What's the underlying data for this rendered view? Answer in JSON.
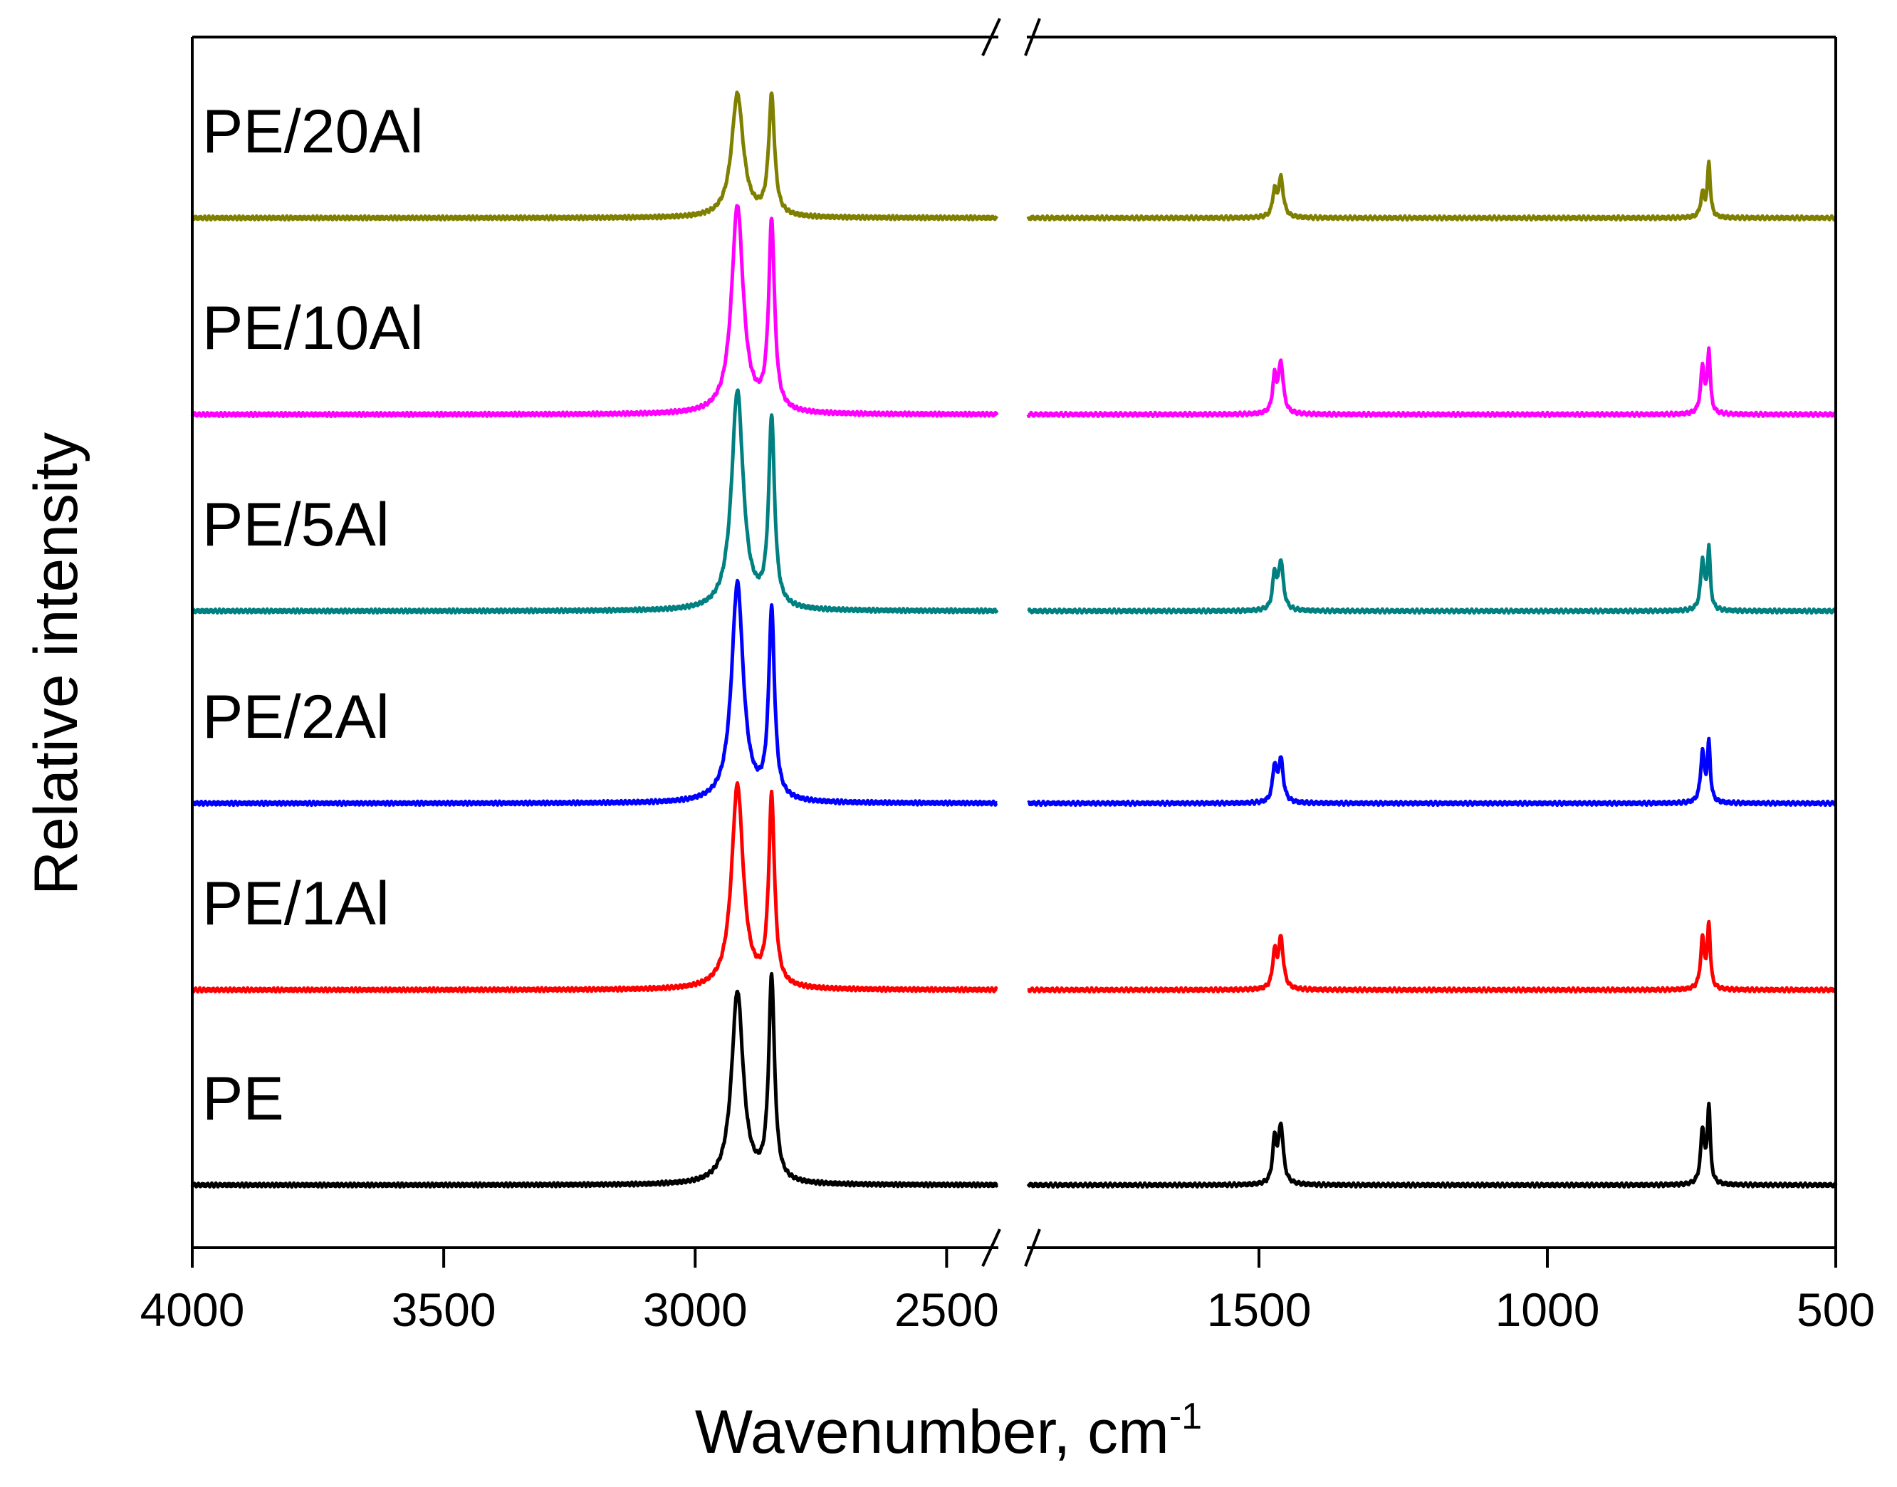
{
  "chart_data": {
    "type": "line",
    "title": "",
    "xlabel": "Wavenumber, cm",
    "xlabel_superscript": "-1",
    "ylabel": "Relative intensity",
    "xlim": [
      4000,
      500
    ],
    "axis_break": [
      2400,
      1900
    ],
    "xticks_left": [
      "4000",
      "3500",
      "3000",
      "2500"
    ],
    "xticks_right": [
      "1500",
      "1000",
      "500"
    ],
    "xtick_values_left": [
      4000,
      3500,
      3000,
      2500
    ],
    "xtick_values_right": [
      1500,
      1000,
      500
    ],
    "y_ticks_shown": false,
    "grid": false,
    "series": [
      {
        "name": "PE",
        "color": "#000000",
        "baseline": 0.0,
        "peak_heights": {
          "2916": 1.0,
          "2848": 1.06,
          "1473": 0.22,
          "1462": 0.3,
          "731": 0.28,
          "720": 0.4
        }
      },
      {
        "name": "PE/1Al",
        "color": "#ff0000",
        "baseline": 1.0,
        "peak_heights": {
          "2916": 1.06,
          "2848": 0.98,
          "1473": 0.18,
          "1462": 0.26,
          "731": 0.26,
          "720": 0.33
        }
      },
      {
        "name": "PE/2Al",
        "color": "#0000ff",
        "baseline": 2.0,
        "peak_heights": {
          "2916": 1.14,
          "2848": 0.98,
          "1473": 0.18,
          "1462": 0.22,
          "731": 0.26,
          "720": 0.3
        }
      },
      {
        "name": "PE/5Al",
        "color": "#008080",
        "baseline": 3.0,
        "peak_heights": {
          "2916": 1.14,
          "2848": 0.98,
          "1473": 0.18,
          "1462": 0.25,
          "731": 0.26,
          "720": 0.31
        }
      },
      {
        "name": "PE/10Al",
        "color": "#ff00ff",
        "baseline": 4.0,
        "peak_heights": {
          "2916": 1.08,
          "2848": 0.98,
          "1473": 0.18,
          "1462": 0.26,
          "731": 0.24,
          "720": 0.32
        }
      },
      {
        "name": "PE/20Al",
        "color": "#808000",
        "baseline": 5.0,
        "peak_heights": {
          "2916": 0.64,
          "2848": 0.62,
          "1473": 0.13,
          "1462": 0.2,
          "731": 0.12,
          "720": 0.28
        }
      }
    ]
  }
}
